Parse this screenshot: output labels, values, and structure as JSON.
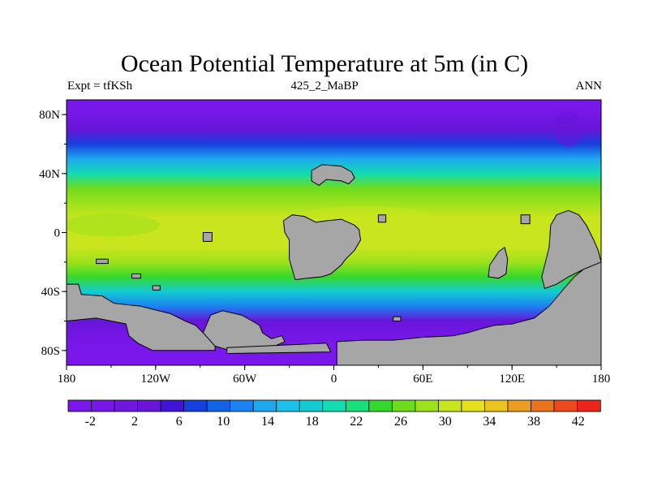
{
  "title": "Ocean Potential Temperature at 5m (in C)",
  "subtitle_left": "Expt = tfKSh",
  "subtitle_center": "425_2_MaBP",
  "subtitle_right": "ANN",
  "colors": {
    "land": "#a6a6a6",
    "scale": [
      "#7a18ec",
      "#7517e6",
      "#6f16df",
      "#6815d8",
      "#3e14d9",
      "#1440dd",
      "#1462e6",
      "#1b82f2",
      "#1ea8ef",
      "#1bc1e8",
      "#13ccd2",
      "#12dcb0",
      "#18e079",
      "#36d92b",
      "#6fdb1d",
      "#9ee21b",
      "#c8e51d",
      "#e6df1e",
      "#ecc41e",
      "#ea9d1e",
      "#ea741e",
      "#ec4a1c",
      "#ee241c"
    ]
  },
  "chart_data": {
    "type": "heatmap",
    "variable": "Ocean Potential Temperature at 5m",
    "units": "C",
    "x_ticks": [
      "180",
      "120W",
      "60W",
      "0",
      "60E",
      "120E",
      "180"
    ],
    "y_ticks": [
      "80N",
      "40N",
      "0",
      "40S",
      "80S"
    ],
    "x_range": [
      -180,
      180
    ],
    "y_range": [
      -90,
      90
    ],
    "colorbar_labels": [
      "-2",
      "2",
      "6",
      "10",
      "14",
      "18",
      "22",
      "26",
      "30",
      "34",
      "38",
      "42"
    ],
    "colorbar_range": [
      -4,
      44
    ],
    "zonal_mean_profile": [
      {
        "lat": 90,
        "temp": -2
      },
      {
        "lat": 80,
        "temp": -1
      },
      {
        "lat": 70,
        "temp": 3
      },
      {
        "lat": 60,
        "temp": 8
      },
      {
        "lat": 50,
        "temp": 14
      },
      {
        "lat": 40,
        "temp": 21
      },
      {
        "lat": 30,
        "temp": 26
      },
      {
        "lat": 20,
        "temp": 29
      },
      {
        "lat": 10,
        "temp": 30
      },
      {
        "lat": 0,
        "temp": 30
      },
      {
        "lat": -10,
        "temp": 30
      },
      {
        "lat": -20,
        "temp": 28
      },
      {
        "lat": -30,
        "temp": 24
      },
      {
        "lat": -40,
        "temp": 18
      },
      {
        "lat": -50,
        "temp": 11
      },
      {
        "lat": -60,
        "temp": 4
      },
      {
        "lat": -70,
        "temp": -1
      },
      {
        "lat": -80,
        "temp": -2
      },
      {
        "lat": -90,
        "temp": -2
      }
    ]
  }
}
